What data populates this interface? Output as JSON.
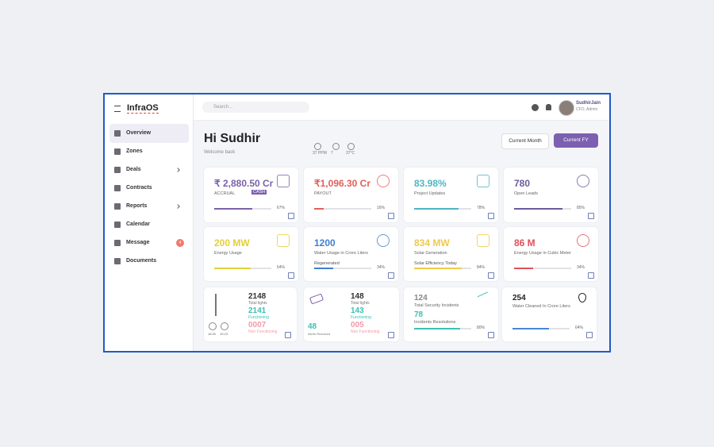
{
  "sidebar": {
    "brand": "InfraOS",
    "items": [
      "Overview",
      "Zones",
      "Deals",
      "Contracts",
      "Reports",
      "Calendar",
      "Message",
      "Documents"
    ],
    "message_badge": "4"
  },
  "header": {
    "search_placeholder": "Search...",
    "user_name": "SudhirJain",
    "user_role": "CFO, Admin"
  },
  "greeting": {
    "title": "Hi Sudhir",
    "subtitle": "Welcome back",
    "weather": [
      "37 PPM",
      "7",
      "37°C"
    ]
  },
  "buttons": [
    "Current Month",
    "Current FY"
  ],
  "cards": [
    {
      "value": "₹ 2,880.50 Cr",
      "label": "ACCRUAL",
      "tag": "CASH",
      "color": "#7b61a8",
      "progress": {
        "value": 67,
        "label": "67%"
      }
    },
    {
      "value": "₹1,096.30 Cr",
      "label": "PAYOUT",
      "color": "#e0605a",
      "progress": {
        "value": 16,
        "label": "16%"
      }
    },
    {
      "value": "83.98%",
      "label": "Project Updates",
      "color": "#4fb6c2",
      "progress": {
        "value": 78,
        "label": "78%"
      }
    },
    {
      "value": "780",
      "label": "Open Leads",
      "color": "#6c5a9c",
      "progress": {
        "value": 85,
        "label": "85%"
      }
    },
    {
      "value": "200 MW",
      "label": "Energy Usage",
      "color": "#e3cf36",
      "progress": {
        "value": 64,
        "label": "64%"
      }
    },
    {
      "value": "1200",
      "label": "Water Usage in Crore Liters",
      "bar_label": "Regenerated",
      "color": "#3d7fd0",
      "progress": {
        "value": 34,
        "label": "34%"
      }
    },
    {
      "value": "834 MW",
      "label": "Solar Generation",
      "bar_label": "Solar Efficiency Today",
      "color": "#efc94a",
      "progress": {
        "value": 84,
        "label": "84%"
      }
    },
    {
      "value": "86 M",
      "label": "Energy Usage in Cubic Meter",
      "color": "#e0505a",
      "progress": {
        "value": 34,
        "label": "34%"
      }
    }
  ],
  "lights": {
    "total": "2148",
    "total_label": "Total lights",
    "functioning": "2141",
    "functioning_label": "Functioning",
    "non_functioning": "0007",
    "non_functioning_label": "Non Functioning",
    "times": [
      "18:30",
      "19:23"
    ]
  },
  "cameras": {
    "total": "148",
    "total_label": "Total lights",
    "functioning": "143",
    "functioning_label": "Functioning",
    "non_functioning": "005",
    "non_functioning_label": "Non Functioning",
    "alerts": "48",
    "alerts_label": "Alerts Resolved"
  },
  "security": {
    "total": "124",
    "total_label": "Total Security Incidents",
    "resolved": "78",
    "resolved_label": "Incidents Resolutions",
    "progress": {
      "value": 80,
      "label": "80%"
    }
  },
  "water": {
    "value": "254",
    "label": "Water Cleaned In Crore Liters",
    "progress": {
      "value": 64,
      "label": "64%"
    }
  }
}
